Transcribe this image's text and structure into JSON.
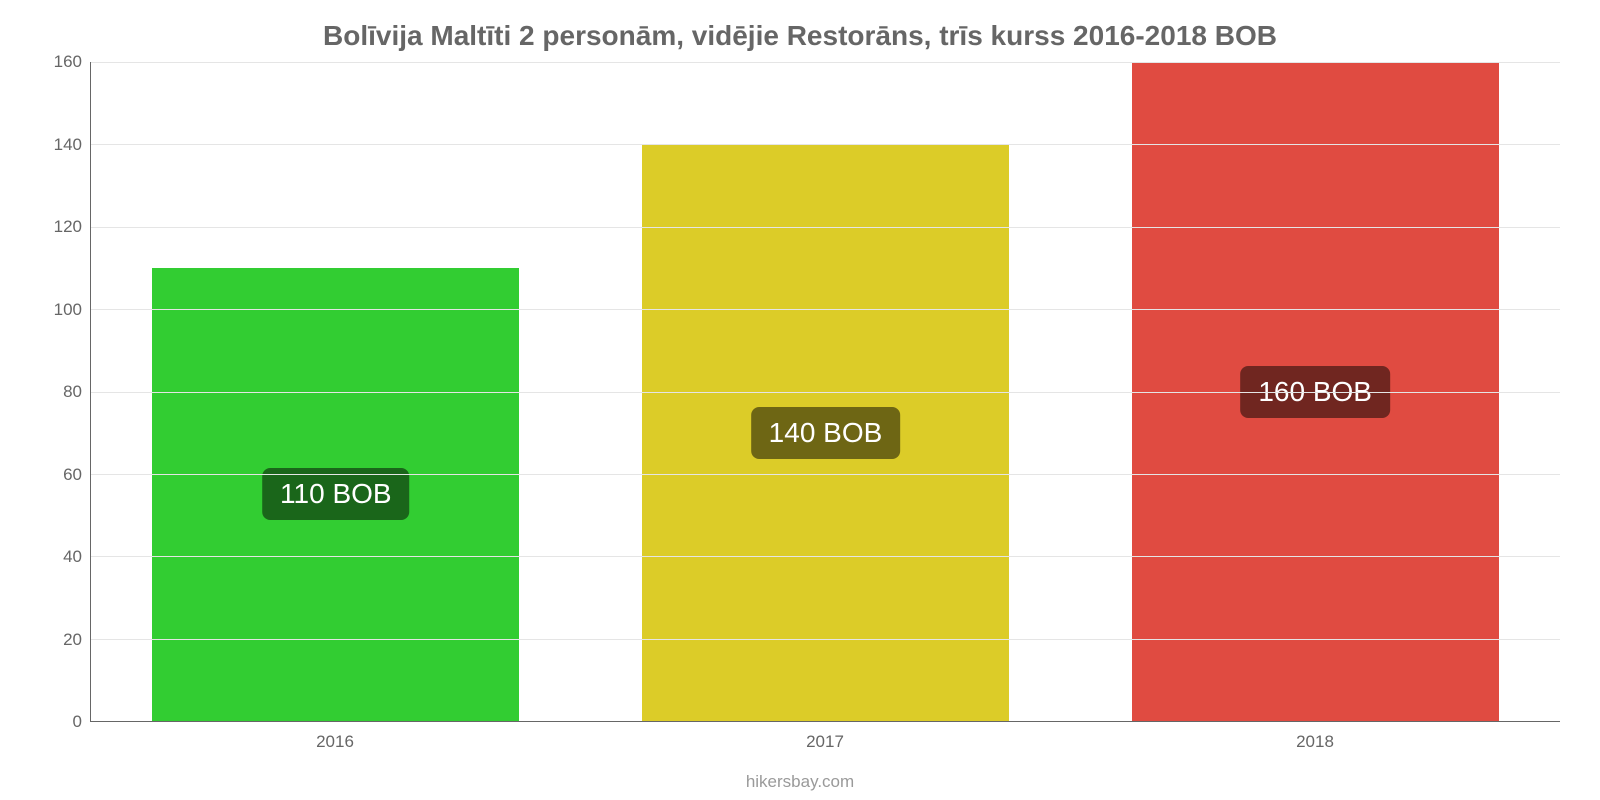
{
  "chart": {
    "type": "bar",
    "title": "Bolīvija Maltīti 2 personām, vidējie Restorāns, trīs kurss 2016-2018 BOB",
    "title_color": "#6f6f6f",
    "title_fontsize": 28,
    "source": "hikersbay.com",
    "source_color": "#9a9a9a",
    "background_color": "#ffffff",
    "axis_color": "#666666",
    "grid_color": "#e5e5e5",
    "label_color": "#666666",
    "label_fontsize": 17,
    "ylim_min": 0,
    "ylim_max": 160,
    "yticks": [
      0,
      20,
      40,
      60,
      80,
      100,
      120,
      140,
      160
    ],
    "categories": [
      "2016",
      "2017",
      "2018"
    ],
    "values": [
      110,
      140,
      160
    ],
    "value_labels": [
      "110 BOB",
      "140 BOB",
      "160 BOB"
    ],
    "bar_colors": [
      "#32cd32",
      "#dccc28",
      "#e04b41"
    ],
    "badge_colors": [
      "#1a661a",
      "#6e6614",
      "#702620"
    ],
    "badge_text_color": "#ffffff",
    "badge_fontsize": 28,
    "bar_width": 0.75
  }
}
